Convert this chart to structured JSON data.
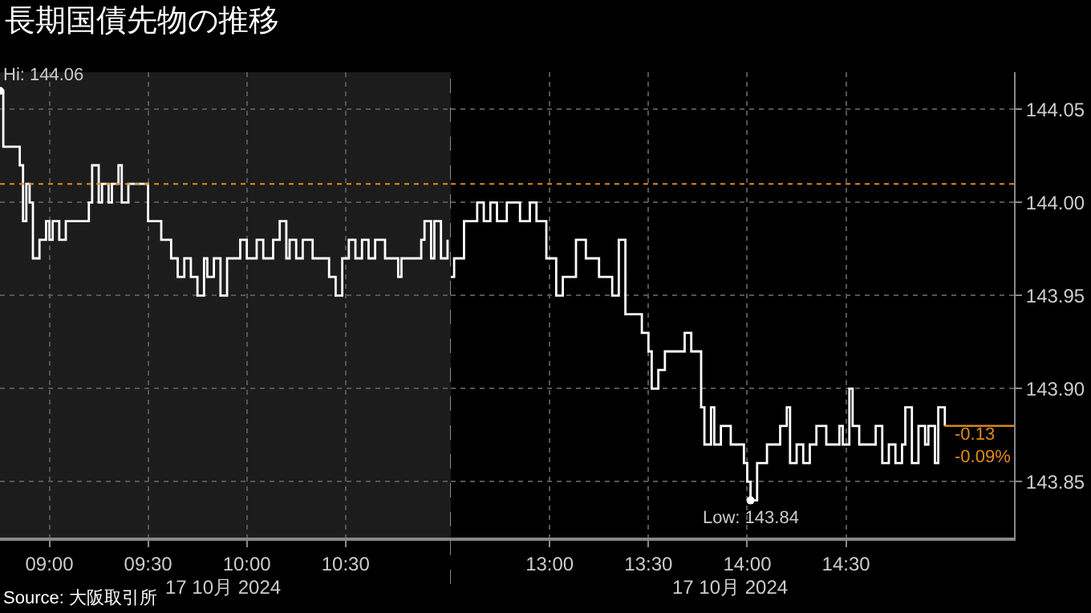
{
  "chart_data": [
    {
      "type": "step",
      "title": "長期国債先物の推移",
      "x": [
        "2024-10-17T08:45",
        "2024-10-17T08:46",
        "2024-10-17T08:49",
        "2024-10-17T08:51",
        "2024-10-17T08:52",
        "2024-10-17T08:53",
        "2024-10-17T08:54",
        "2024-10-17T08:55",
        "2024-10-17T08:57",
        "2024-10-17T08:59",
        "2024-10-17T09:00",
        "2024-10-17T09:01",
        "2024-10-17T09:03",
        "2024-10-17T09:05",
        "2024-10-17T09:07",
        "2024-10-17T09:09",
        "2024-10-17T09:12",
        "2024-10-17T09:13",
        "2024-10-17T09:15",
        "2024-10-17T09:16",
        "2024-10-17T09:18",
        "2024-10-17T09:19",
        "2024-10-17T09:21",
        "2024-10-17T09:22",
        "2024-10-17T09:24",
        "2024-10-17T09:26",
        "2024-10-17T09:29",
        "2024-10-17T09:30",
        "2024-10-17T09:32",
        "2024-10-17T09:34",
        "2024-10-17T09:36",
        "2024-10-17T09:37",
        "2024-10-17T09:39",
        "2024-10-17T09:41",
        "2024-10-17T09:43",
        "2024-10-17T09:45",
        "2024-10-17T09:47",
        "2024-10-17T09:48",
        "2024-10-17T09:50",
        "2024-10-17T09:52",
        "2024-10-17T09:54",
        "2024-10-17T09:56",
        "2024-10-17T09:58",
        "2024-10-17T10:00",
        "2024-10-17T10:03",
        "2024-10-17T10:05",
        "2024-10-17T10:08",
        "2024-10-17T10:10",
        "2024-10-17T10:12",
        "2024-10-17T10:13",
        "2024-10-17T10:15",
        "2024-10-17T10:17",
        "2024-10-17T10:20",
        "2024-10-17T10:22",
        "2024-10-17T10:25",
        "2024-10-17T10:27",
        "2024-10-17T10:29",
        "2024-10-17T10:31",
        "2024-10-17T10:33",
        "2024-10-17T10:35",
        "2024-10-17T10:37",
        "2024-10-17T10:39",
        "2024-10-17T10:42",
        "2024-10-17T10:44",
        "2024-10-17T10:46",
        "2024-10-17T10:47",
        "2024-10-17T10:50",
        "2024-10-17T10:53",
        "2024-10-17T10:54",
        "2024-10-17T10:56",
        "2024-10-17T10:57",
        "2024-10-17T10:59",
        "2024-10-17T11:01"
      ],
      "series": [
        {
          "color": "#ffffff",
          "values": [
            144.06,
            144.03,
            144.03,
            144.02,
            143.99,
            144.01,
            144.0,
            143.97,
            143.98,
            143.99,
            143.98,
            143.99,
            143.98,
            143.99,
            143.99,
            143.99,
            144.0,
            144.02,
            144.0,
            144.01,
            144.0,
            144.01,
            144.02,
            144.0,
            144.01,
            144.01,
            144.01,
            143.99,
            143.99,
            143.98,
            143.98,
            143.97,
            143.96,
            143.97,
            143.96,
            143.95,
            143.97,
            143.96,
            143.97,
            143.95,
            143.97,
            143.97,
            143.98,
            143.97,
            143.98,
            143.97,
            143.98,
            143.99,
            143.97,
            143.98,
            143.97,
            143.98,
            143.97,
            143.97,
            143.96,
            143.95,
            143.97,
            143.98,
            143.97,
            143.98,
            143.97,
            143.98,
            143.97,
            143.97,
            143.96,
            143.97,
            143.97,
            143.98,
            143.99,
            143.97,
            143.99,
            143.97,
            143.98
          ]
        }
      ],
      "xlim": [
        "2024-10-17T08:45",
        "2024-10-17T11:02"
      ],
      "xticks": [
        {
          "value": "2024-10-17T09:00",
          "label": "09:00"
        },
        {
          "value": "2024-10-17T09:30",
          "label": "09:30"
        },
        {
          "value": "2024-10-17T10:00",
          "label": "10:00"
        },
        {
          "value": "2024-10-17T10:30",
          "label": "10:30"
        }
      ],
      "ylim": [
        143.82,
        144.07
      ],
      "yticks": [
        {
          "value": 143.85,
          "label": null
        },
        {
          "value": 143.9,
          "label": null
        },
        {
          "value": 143.95,
          "label": null
        },
        {
          "value": 144.0,
          "label": null
        },
        {
          "value": 144.05,
          "label": null
        }
      ],
      "grid": true,
      "tick_labels": "x",
      "ref_lines": [
        {
          "axis": "y",
          "value": 144.01,
          "color": "#e08a1e",
          "line_style": "dotted"
        }
      ],
      "bands": [
        {
          "axis": "x",
          "from": "2024-10-17T08:45",
          "to": "2024-10-17T11:02",
          "color": "#1c1c1c"
        }
      ],
      "annotations": [
        {
          "text": "Hi: 144.06",
          "x": "2024-10-17T08:45",
          "y": 144.06
        },
        "17 10月 2024",
        "Source: 大阪取引所"
      ]
    },
    {
      "type": "step",
      "x": [
        "2024-10-17T12:30",
        "2024-10-17T12:31",
        "2024-10-17T12:34",
        "2024-10-17T12:38",
        "2024-10-17T12:40",
        "2024-10-17T12:42",
        "2024-10-17T12:44",
        "2024-10-17T12:47",
        "2024-10-17T12:49",
        "2024-10-17T12:51",
        "2024-10-17T12:54",
        "2024-10-17T12:56",
        "2024-10-17T12:59",
        "2024-10-17T13:01",
        "2024-10-17T13:02",
        "2024-10-17T13:04",
        "2024-10-17T13:06",
        "2024-10-17T13:08",
        "2024-10-17T13:09",
        "2024-10-17T13:11",
        "2024-10-17T13:13",
        "2024-10-17T13:15",
        "2024-10-17T13:17",
        "2024-10-17T13:19",
        "2024-10-17T13:21",
        "2024-10-17T13:23",
        "2024-10-17T13:26",
        "2024-10-17T13:28",
        "2024-10-17T13:30",
        "2024-10-17T13:31",
        "2024-10-17T13:33",
        "2024-10-17T13:35",
        "2024-10-17T13:38",
        "2024-10-17T13:40",
        "2024-10-17T13:41",
        "2024-10-17T13:43",
        "2024-10-17T13:46",
        "2024-10-17T13:47",
        "2024-10-17T13:49",
        "2024-10-17T13:50",
        "2024-10-17T13:52",
        "2024-10-17T13:55",
        "2024-10-17T13:57",
        "2024-10-17T13:59",
        "2024-10-17T14:00",
        "2024-10-17T14:01",
        "2024-10-17T14:03",
        "2024-10-17T14:05",
        "2024-10-17T14:06",
        "2024-10-17T14:08",
        "2024-10-17T14:10",
        "2024-10-17T14:12",
        "2024-10-17T14:13",
        "2024-10-17T14:15",
        "2024-10-17T14:17",
        "2024-10-17T14:19",
        "2024-10-17T14:21",
        "2024-10-17T14:24",
        "2024-10-17T14:26",
        "2024-10-17T14:28",
        "2024-10-17T14:29",
        "2024-10-17T14:31",
        "2024-10-17T14:32",
        "2024-10-17T14:34",
        "2024-10-17T14:37",
        "2024-10-17T14:39",
        "2024-10-17T14:41",
        "2024-10-17T14:43",
        "2024-10-17T14:45",
        "2024-10-17T14:47",
        "2024-10-17T14:48",
        "2024-10-17T14:50",
        "2024-10-17T14:52",
        "2024-10-17T14:54",
        "2024-10-17T14:55",
        "2024-10-17T14:57",
        "2024-10-17T14:58",
        "2024-10-17T15:00"
      ],
      "series": [
        {
          "color": "#ffffff",
          "values": [
            143.96,
            143.97,
            143.99,
            144.0,
            143.99,
            144.0,
            143.99,
            144.0,
            144.0,
            143.99,
            144.0,
            143.99,
            143.97,
            143.97,
            143.95,
            143.96,
            143.96,
            143.98,
            143.98,
            143.97,
            143.97,
            143.96,
            143.96,
            143.95,
            143.98,
            143.94,
            143.94,
            143.93,
            143.92,
            143.9,
            143.91,
            143.92,
            143.92,
            143.92,
            143.93,
            143.92,
            143.89,
            143.87,
            143.89,
            143.87,
            143.88,
            143.87,
            143.87,
            143.86,
            143.85,
            143.84,
            143.86,
            143.86,
            143.87,
            143.87,
            143.88,
            143.89,
            143.86,
            143.87,
            143.86,
            143.87,
            143.88,
            143.87,
            143.87,
            143.88,
            143.87,
            143.9,
            143.88,
            143.87,
            143.87,
            143.88,
            143.86,
            143.87,
            143.86,
            143.87,
            143.89,
            143.86,
            143.88,
            143.87,
            143.88,
            143.86,
            143.89,
            143.88
          ]
        }
      ],
      "xlim": [
        "2024-10-17T12:30",
        "2024-10-17T15:21"
      ],
      "xticks": [
        {
          "value": "2024-10-17T13:00",
          "label": "13:00"
        },
        {
          "value": "2024-10-17T13:30",
          "label": "13:30"
        },
        {
          "value": "2024-10-17T14:00",
          "label": "14:00"
        },
        {
          "value": "2024-10-17T14:30",
          "label": "14:30"
        }
      ],
      "ylim": [
        143.82,
        144.07
      ],
      "yticks": [
        {
          "value": 143.85,
          "label": "143.85"
        },
        {
          "value": 143.9,
          "label": "143.90"
        },
        {
          "value": 143.95,
          "label": "143.95"
        },
        {
          "value": 144.0,
          "label": "144.00"
        },
        {
          "value": 144.05,
          "label": "144.05"
        }
      ],
      "grid": true,
      "ref_lines": [
        {
          "axis": "y",
          "value": 144.01,
          "color": "#e08a1e",
          "line_style": "dotted"
        }
      ],
      "annotations": [
        {
          "text": "Low: 143.84",
          "x": "2024-10-17T14:01",
          "y": 143.84
        },
        {
          "text": "-0.13",
          "x": "2024-10-17T15:00",
          "y": 143.88
        },
        {
          "text": "-0.09%",
          "x": "2024-10-17T15:00",
          "y": 143.88
        },
        "17 10月 2024"
      ]
    }
  ]
}
